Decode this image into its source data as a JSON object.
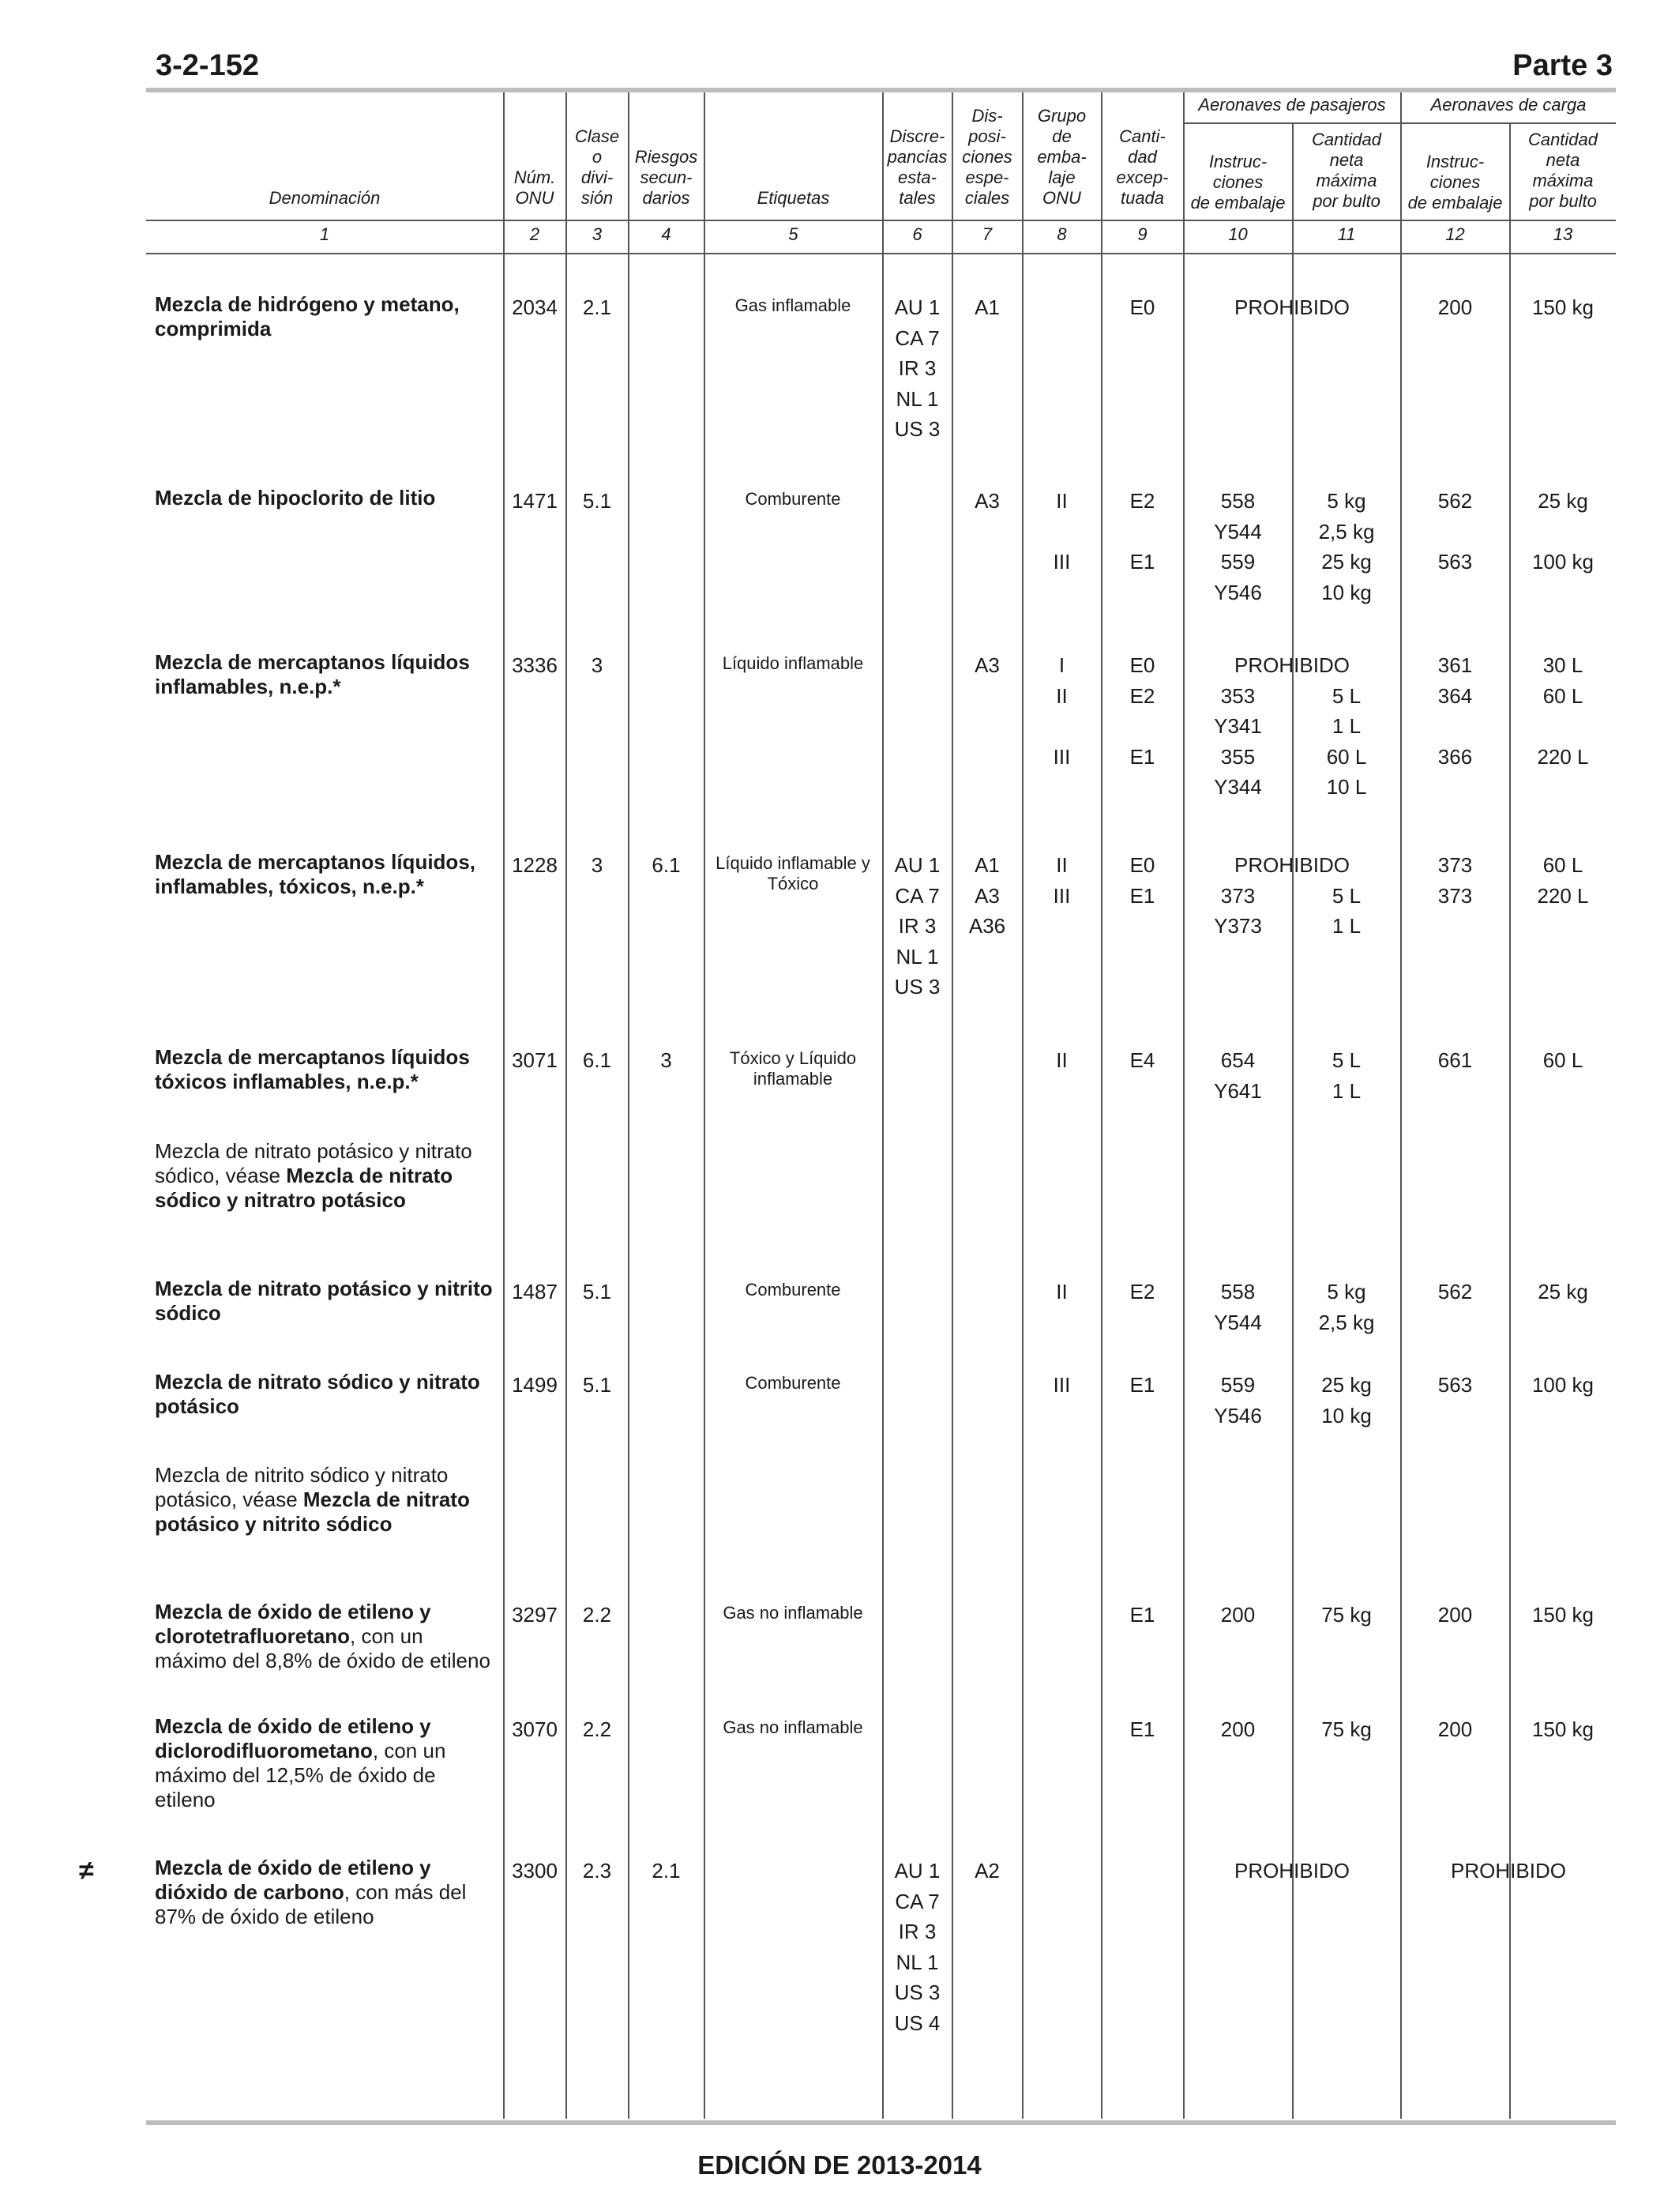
{
  "page": {
    "number": "3-2-152",
    "part": "Parte 3",
    "footer": "EDICIÓN DE 2013-2014"
  },
  "headers": {
    "denominacion": "Denominación",
    "onu": "Núm.\nONU",
    "clase": "Clase\no\ndivi-\nsión",
    "riesgos": "Riesgos\nsecun-\ndarios",
    "etiquetas": "Etiquetas",
    "discrepancias": "Discre-\npancias\nesta-\ntales",
    "disposiciones": "Dis-\nposi-\nciones\nespe-\nciales",
    "grupo": "Grupo\nde\nemba-\nlaje\nONU",
    "cantidad_exceptuada": "Canti-\ndad\nexcep-\ntuada",
    "pasajeros": "Aeronaves de pasajeros",
    "carga": "Aeronaves de carga",
    "instr_pas": "Instruc-\nciones\nde embalaje",
    "cant_pas": "Cantidad\nneta\nmáxima\npor bulto",
    "instr_carga": "Instruc-\nciones\nde embalaje",
    "cant_carga": "Cantidad\nneta\nmáxima\npor bulto"
  },
  "column_numbers": [
    "1",
    "2",
    "3",
    "4",
    "5",
    "6",
    "7",
    "8",
    "9",
    "10",
    "11",
    "12",
    "13"
  ],
  "rows": [
    {
      "name_bold": "Mezcla de hidrógeno y metano,\ncomprimida",
      "name_rest": "",
      "onu": "2034",
      "clase": "2.1",
      "riesgos": "",
      "etiquetas": "Gas inflamable",
      "discrepancias": "AU 1\nCA 7\nIR 3\nNL 1\nUS 3",
      "disposiciones": "A1",
      "grupo": "",
      "exceptuada": "E0",
      "instr_pas": "",
      "cant_pas": "",
      "instr_carga": "200",
      "cant_carga": "150 kg",
      "prohibido_pas": "PROHIBIDO",
      "prohibido_carga": ""
    },
    {
      "name_bold": "Mezcla de hipoclorito de litio",
      "name_rest": "",
      "onu": "1471",
      "clase": "5.1",
      "riesgos": "",
      "etiquetas": "Comburente",
      "discrepancias": "",
      "disposiciones": "A3",
      "grupo": "II\n\nIII",
      "exceptuada": "E2\n\nE1",
      "instr_pas": "558\nY544\n559\nY546",
      "cant_pas": "5 kg\n2,5 kg\n25 kg\n10 kg",
      "instr_carga": "562\n\n563",
      "cant_carga": "25 kg\n\n100 kg",
      "prohibido_pas": "",
      "prohibido_carga": ""
    },
    {
      "name_bold": "Mezcla de mercaptanos líquidos\ninflamables, n.e.p.*",
      "name_rest": "",
      "onu": "3336",
      "clase": "3",
      "riesgos": "",
      "etiquetas": "Líquido inflamable",
      "discrepancias": "",
      "disposiciones": "A3",
      "grupo": "I\nII\n\nIII",
      "exceptuada": "E0\nE2\n\nE1",
      "instr_pas": "\n353\nY341\n355\nY344",
      "cant_pas": "\n5 L\n1 L\n60 L\n10 L",
      "instr_carga": "361\n364\n\n366",
      "cant_carga": "30 L\n60 L\n\n220 L",
      "prohibido_pas": "PROHIBIDO",
      "prohibido_carga": ""
    },
    {
      "name_bold": "Mezcla de mercaptanos líquidos,\ninflamables, tóxicos, n.e.p.*",
      "name_rest": "",
      "onu": "1228",
      "clase": "3",
      "riesgos": "6.1",
      "etiquetas": "Líquido inflamable y\nTóxico",
      "discrepancias": "AU 1\nCA 7\nIR 3\nNL 1\nUS 3",
      "disposiciones": "A1\nA3\nA36",
      "grupo": "II\nIII",
      "exceptuada": "E0\nE1",
      "instr_pas": "\n373\nY373",
      "cant_pas": "\n5 L\n1 L",
      "instr_carga": "373\n373",
      "cant_carga": "60 L\n220 L",
      "prohibido_pas": "PROHIBIDO",
      "prohibido_carga": ""
    },
    {
      "name_bold": "Mezcla de mercaptanos líquidos\ntóxicos inflamables, n.e.p.*",
      "name_rest": "",
      "onu": "3071",
      "clase": "6.1",
      "riesgos": "3",
      "etiquetas": "Tóxico y Líquido\ninflamable",
      "discrepancias": "",
      "disposiciones": "",
      "grupo": "II",
      "exceptuada": "E4",
      "instr_pas": "654\nY641",
      "cant_pas": "5 L\n1 L",
      "instr_carga": "661",
      "cant_carga": "60 L",
      "prohibido_pas": "",
      "prohibido_carga": ""
    },
    {
      "name_pre": "Mezcla de nitrato potásico y nitrato\nsódico, véase ",
      "name_bold": "Mezcla de nitrato\nsódico y nitratro potásico",
      "name_rest": "",
      "onu": "",
      "clase": "",
      "riesgos": "",
      "etiquetas": "",
      "discrepancias": "",
      "disposiciones": "",
      "grupo": "",
      "exceptuada": "",
      "instr_pas": "",
      "cant_pas": "",
      "instr_carga": "",
      "cant_carga": "",
      "prohibido_pas": "",
      "prohibido_carga": ""
    },
    {
      "name_bold": "Mezcla de nitrato potásico y nitrito\nsódico",
      "name_rest": "",
      "onu": "1487",
      "clase": "5.1",
      "riesgos": "",
      "etiquetas": "Comburente",
      "discrepancias": "",
      "disposiciones": "",
      "grupo": "II",
      "exceptuada": "E2",
      "instr_pas": "558\nY544",
      "cant_pas": "5 kg\n2,5 kg",
      "instr_carga": "562",
      "cant_carga": "25 kg",
      "prohibido_pas": "",
      "prohibido_carga": ""
    },
    {
      "name_bold": "Mezcla de nitrato sódico y nitrato\npotásico",
      "name_rest": "",
      "onu": "1499",
      "clase": "5.1",
      "riesgos": "",
      "etiquetas": "Comburente",
      "discrepancias": "",
      "disposiciones": "",
      "grupo": "III",
      "exceptuada": "E1",
      "instr_pas": "559\nY546",
      "cant_pas": "25 kg\n10 kg",
      "instr_carga": "563",
      "cant_carga": "100 kg",
      "prohibido_pas": "",
      "prohibido_carga": ""
    },
    {
      "name_pre": "Mezcla de nitrito sódico y nitrato\npotásico, véase  ",
      "name_bold": "Mezcla de nitrato\npotásico y nitrito sódico",
      "name_rest": "",
      "onu": "",
      "clase": "",
      "riesgos": "",
      "etiquetas": "",
      "discrepancias": "",
      "disposiciones": "",
      "grupo": "",
      "exceptuada": "",
      "instr_pas": "",
      "cant_pas": "",
      "instr_carga": "",
      "cant_carga": "",
      "prohibido_pas": "",
      "prohibido_carga": ""
    },
    {
      "name_bold": "Mezcla de óxido de etileno y\nclorotetrafluoretano",
      "name_rest": ", con un\nmáximo del 8,8% de óxido de etileno",
      "onu": "3297",
      "clase": "2.2",
      "riesgos": "",
      "etiquetas": "Gas no inflamable",
      "discrepancias": "",
      "disposiciones": "",
      "grupo": "",
      "exceptuada": "E1",
      "instr_pas": "200",
      "cant_pas": "75 kg",
      "instr_carga": "200",
      "cant_carga": "150 kg",
      "prohibido_pas": "",
      "prohibido_carga": ""
    },
    {
      "name_bold": "Mezcla de óxido de etileno y\ndiclorodifluorometano",
      "name_rest": ", con un\nmáximo del 12,5% de óxido de\netileno",
      "onu": "3070",
      "clase": "2.2",
      "riesgos": "",
      "etiquetas": "Gas no inflamable",
      "discrepancias": "",
      "disposiciones": "",
      "grupo": "",
      "exceptuada": "E1",
      "instr_pas": "200",
      "cant_pas": "75 kg",
      "instr_carga": "200",
      "cant_carga": "150 kg",
      "prohibido_pas": "",
      "prohibido_carga": ""
    },
    {
      "mark": "≠",
      "name_bold": "Mezcla de óxido de etileno y\ndióxido de carbono",
      "name_rest": ", con más del\n87% de óxido de etileno",
      "onu": "3300",
      "clase": "2.3",
      "riesgos": "2.1",
      "etiquetas": "",
      "discrepancias": "AU 1\nCA 7\nIR 3\nNL 1\nUS 3\nUS 4",
      "disposiciones": "A2",
      "grupo": "",
      "exceptuada": "",
      "instr_pas": "",
      "cant_pas": "",
      "instr_carga": "",
      "cant_carga": "",
      "prohibido_pas": "PROHIBIDO",
      "prohibido_carga": "PROHIBIDO"
    }
  ]
}
